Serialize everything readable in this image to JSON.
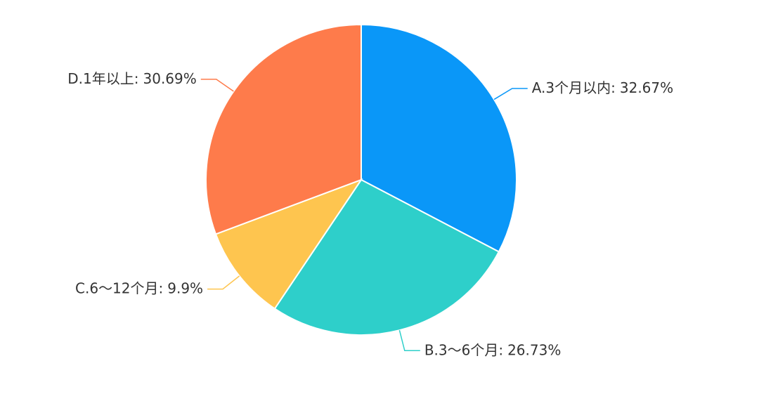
{
  "chart_data": {
    "type": "pie",
    "categories": [
      "A.3个月以内:",
      "B.3～6个月:",
      "C.6～12个月:",
      "D.1年以上:"
    ],
    "values": [
      32.67,
      26.73,
      9.9,
      30.69
    ],
    "value_labels": [
      "32.67%",
      "26.73%",
      "9.9%",
      "30.69%"
    ],
    "colors": [
      "#0a97f8",
      "#2ecfca",
      "#fec54f",
      "#fe7b4b"
    ]
  }
}
